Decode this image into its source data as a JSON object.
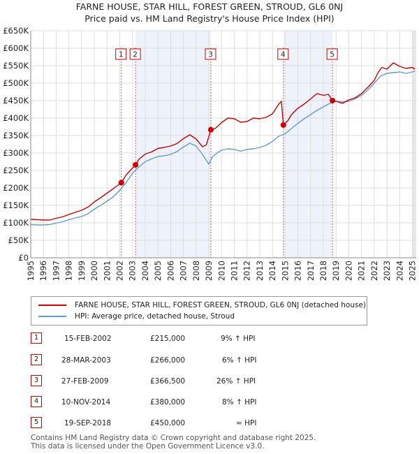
{
  "chart_data": {
    "type": "line",
    "title": "FARNE HOUSE, STAR HILL, FOREST GREEN, STROUD, GL6 0NJ",
    "subtitle": "Price paid vs. HM Land Registry's House Price Index (HPI)",
    "xlim": [
      1995,
      2025.3
    ],
    "ylim": [
      0,
      650000
    ],
    "x_ticks": [
      "1995",
      "1996",
      "1997",
      "1998",
      "1999",
      "2000",
      "2001",
      "2002",
      "2003",
      "2004",
      "2005",
      "2006",
      "2007",
      "2008",
      "2009",
      "2010",
      "2011",
      "2012",
      "2013",
      "2014",
      "2015",
      "2016",
      "2017",
      "2018",
      "2019",
      "2020",
      "2021",
      "2022",
      "2023",
      "2024",
      "2025"
    ],
    "y_ticks": [
      {
        "value": 0,
        "label": "£0"
      },
      {
        "value": 50000,
        "label": "£50K"
      },
      {
        "value": 100000,
        "label": "£100K"
      },
      {
        "value": 150000,
        "label": "£150K"
      },
      {
        "value": 200000,
        "label": "£200K"
      },
      {
        "value": 250000,
        "label": "£250K"
      },
      {
        "value": 300000,
        "label": "£300K"
      },
      {
        "value": 350000,
        "label": "£350K"
      },
      {
        "value": 400000,
        "label": "£400K"
      },
      {
        "value": 450000,
        "label": "£450K"
      },
      {
        "value": 500000,
        "label": "£500K"
      },
      {
        "value": 550000,
        "label": "£550K"
      },
      {
        "value": 600000,
        "label": "£600K"
      },
      {
        "value": 650000,
        "label": "£650K"
      }
    ],
    "grid": true,
    "series": [
      {
        "name": "FARNE HOUSE, STAR HILL, FOREST GREEN, STROUD, GL6 0NJ (detached house)",
        "color": "#cc0000",
        "x": [
          1995.0,
          1995.5,
          1996.0,
          1996.5,
          1997.0,
          1997.5,
          1998.0,
          1998.5,
          1999.0,
          1999.5,
          2000.0,
          2000.5,
          2001.0,
          2001.5,
          2002.12,
          2002.5,
          2003.24,
          2003.5,
          2004.0,
          2004.5,
          2005.0,
          2005.5,
          2006.0,
          2006.5,
          2007.0,
          2007.5,
          2008.0,
          2008.5,
          2008.8,
          2009.16,
          2009.5,
          2010.0,
          2010.5,
          2011.0,
          2011.5,
          2012.0,
          2012.5,
          2013.0,
          2013.5,
          2014.0,
          2014.5,
          2014.7,
          2014.86,
          2015.2,
          2015.5,
          2016.0,
          2016.5,
          2017.0,
          2017.5,
          2018.0,
          2018.4,
          2018.72,
          2019.0,
          2019.5,
          2020.0,
          2020.5,
          2021.0,
          2021.5,
          2022.0,
          2022.3,
          2022.6,
          2023.0,
          2023.5,
          2024.0,
          2024.5,
          2025.0,
          2025.2
        ],
        "y": [
          110000,
          109000,
          108000,
          108000,
          113000,
          117000,
          124000,
          130000,
          136000,
          145000,
          160000,
          172000,
          185000,
          198000,
          215000,
          237000,
          266000,
          282000,
          297000,
          303000,
          313000,
          316000,
          320000,
          327000,
          341000,
          352000,
          340000,
          318000,
          323000,
          366500,
          370000,
          387000,
          400000,
          398000,
          388000,
          390000,
          400000,
          398000,
          402000,
          412000,
          440000,
          448000,
          380000,
          392000,
          410000,
          428000,
          440000,
          455000,
          470000,
          465000,
          468000,
          450000,
          448000,
          442000,
          452000,
          458000,
          470000,
          488000,
          508000,
          530000,
          545000,
          540000,
          558000,
          548000,
          542000,
          545000,
          540000
        ]
      },
      {
        "name": "HPI: Average price, detached house, Stroud",
        "color": "#6699cc",
        "x": [
          1995.0,
          1995.5,
          1996.0,
          1996.5,
          1997.0,
          1997.5,
          1998.0,
          1998.5,
          1999.0,
          1999.5,
          2000.0,
          2000.5,
          2001.0,
          2001.5,
          2002.0,
          2002.5,
          2003.0,
          2003.5,
          2004.0,
          2004.5,
          2005.0,
          2005.5,
          2006.0,
          2006.5,
          2007.0,
          2007.5,
          2008.0,
          2008.5,
          2009.0,
          2009.3,
          2009.5,
          2010.0,
          2010.5,
          2011.0,
          2011.5,
          2012.0,
          2012.5,
          2013.0,
          2013.5,
          2014.0,
          2014.5,
          2015.0,
          2015.5,
          2016.0,
          2016.5,
          2017.0,
          2017.5,
          2018.0,
          2018.5,
          2019.0,
          2019.5,
          2020.0,
          2020.5,
          2021.0,
          2021.5,
          2022.0,
          2022.5,
          2023.0,
          2023.5,
          2024.0,
          2024.5,
          2025.0,
          2025.2
        ],
        "y": [
          95000,
          94000,
          94000,
          95000,
          99000,
          103000,
          109000,
          114000,
          118000,
          126000,
          139000,
          150000,
          162000,
          175000,
          193000,
          215000,
          242000,
          260000,
          275000,
          283000,
          290000,
          292000,
          296000,
          304000,
          317000,
          328000,
          320000,
          296000,
          268000,
          290000,
          296000,
          308000,
          312000,
          310000,
          305000,
          310000,
          312000,
          316000,
          322000,
          333000,
          348000,
          355000,
          370000,
          385000,
          398000,
          410000,
          422000,
          432000,
          442000,
          448000,
          446000,
          448000,
          455000,
          465000,
          480000,
          500000,
          520000,
          528000,
          530000,
          532000,
          528000,
          532000,
          535000
        ]
      }
    ],
    "sale_markers": [
      {
        "label": "1",
        "x": 2002.12,
        "y": 215000
      },
      {
        "label": "2",
        "x": 2003.24,
        "y": 266000
      },
      {
        "label": "3",
        "x": 2009.16,
        "y": 366500
      },
      {
        "label": "4",
        "x": 2014.86,
        "y": 380000
      },
      {
        "label": "5",
        "x": 2018.72,
        "y": 450000
      }
    ],
    "shaded_ranges": [
      [
        2003.24,
        2009.16
      ],
      [
        2014.86,
        2018.72
      ]
    ]
  },
  "legend": {
    "entries": [
      {
        "label": "FARNE HOUSE, STAR HILL, FOREST GREEN, STROUD, GL6 0NJ (detached house)",
        "color": "#cc0000"
      },
      {
        "label": "HPI: Average price, detached house, Stroud",
        "color": "#6699cc"
      }
    ]
  },
  "sales": [
    {
      "num": "1",
      "date": "15-FEB-2002",
      "price": "£215,000",
      "hpi": "9% ↑ HPI"
    },
    {
      "num": "2",
      "date": "28-MAR-2003",
      "price": "£266,000",
      "hpi": "6% ↑ HPI"
    },
    {
      "num": "3",
      "date": "27-FEB-2009",
      "price": "£366,500",
      "hpi": "26% ↑ HPI"
    },
    {
      "num": "4",
      "date": "10-NOV-2014",
      "price": "£380,000",
      "hpi": "8% ↑ HPI"
    },
    {
      "num": "5",
      "date": "19-SEP-2018",
      "price": "£450,000",
      "hpi": "≈ HPI"
    }
  ],
  "footer": {
    "line1": "Contains HM Land Registry data © Crown copyright and database right 2025.",
    "line2": "This data is licensed under the Open Government Licence v3.0."
  }
}
